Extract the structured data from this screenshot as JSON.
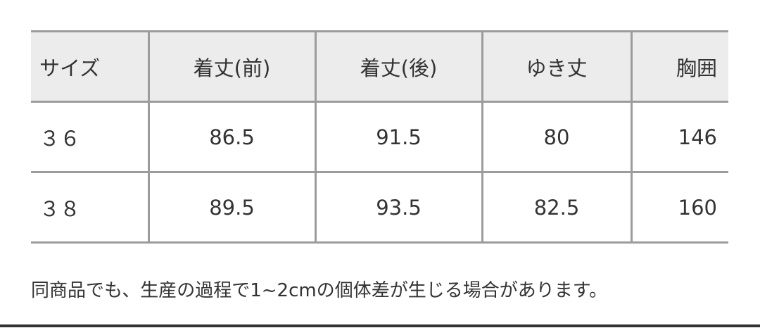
{
  "table": {
    "headers": [
      "サイズ",
      "着丈(前)",
      "着丈(後)",
      "ゆき丈",
      "胸囲"
    ],
    "rows": [
      [
        "３６",
        "86.5",
        "91.5",
        "80",
        "146"
      ],
      [
        "３８",
        "89.5",
        "93.5",
        "82.5",
        "160"
      ]
    ]
  },
  "note": "同商品でも、生産の過程で1~2cmの個体差が生じる場合があります。",
  "colors": {
    "header_bg": "#ececec",
    "border": "#9c9c9c",
    "text": "#333333"
  }
}
